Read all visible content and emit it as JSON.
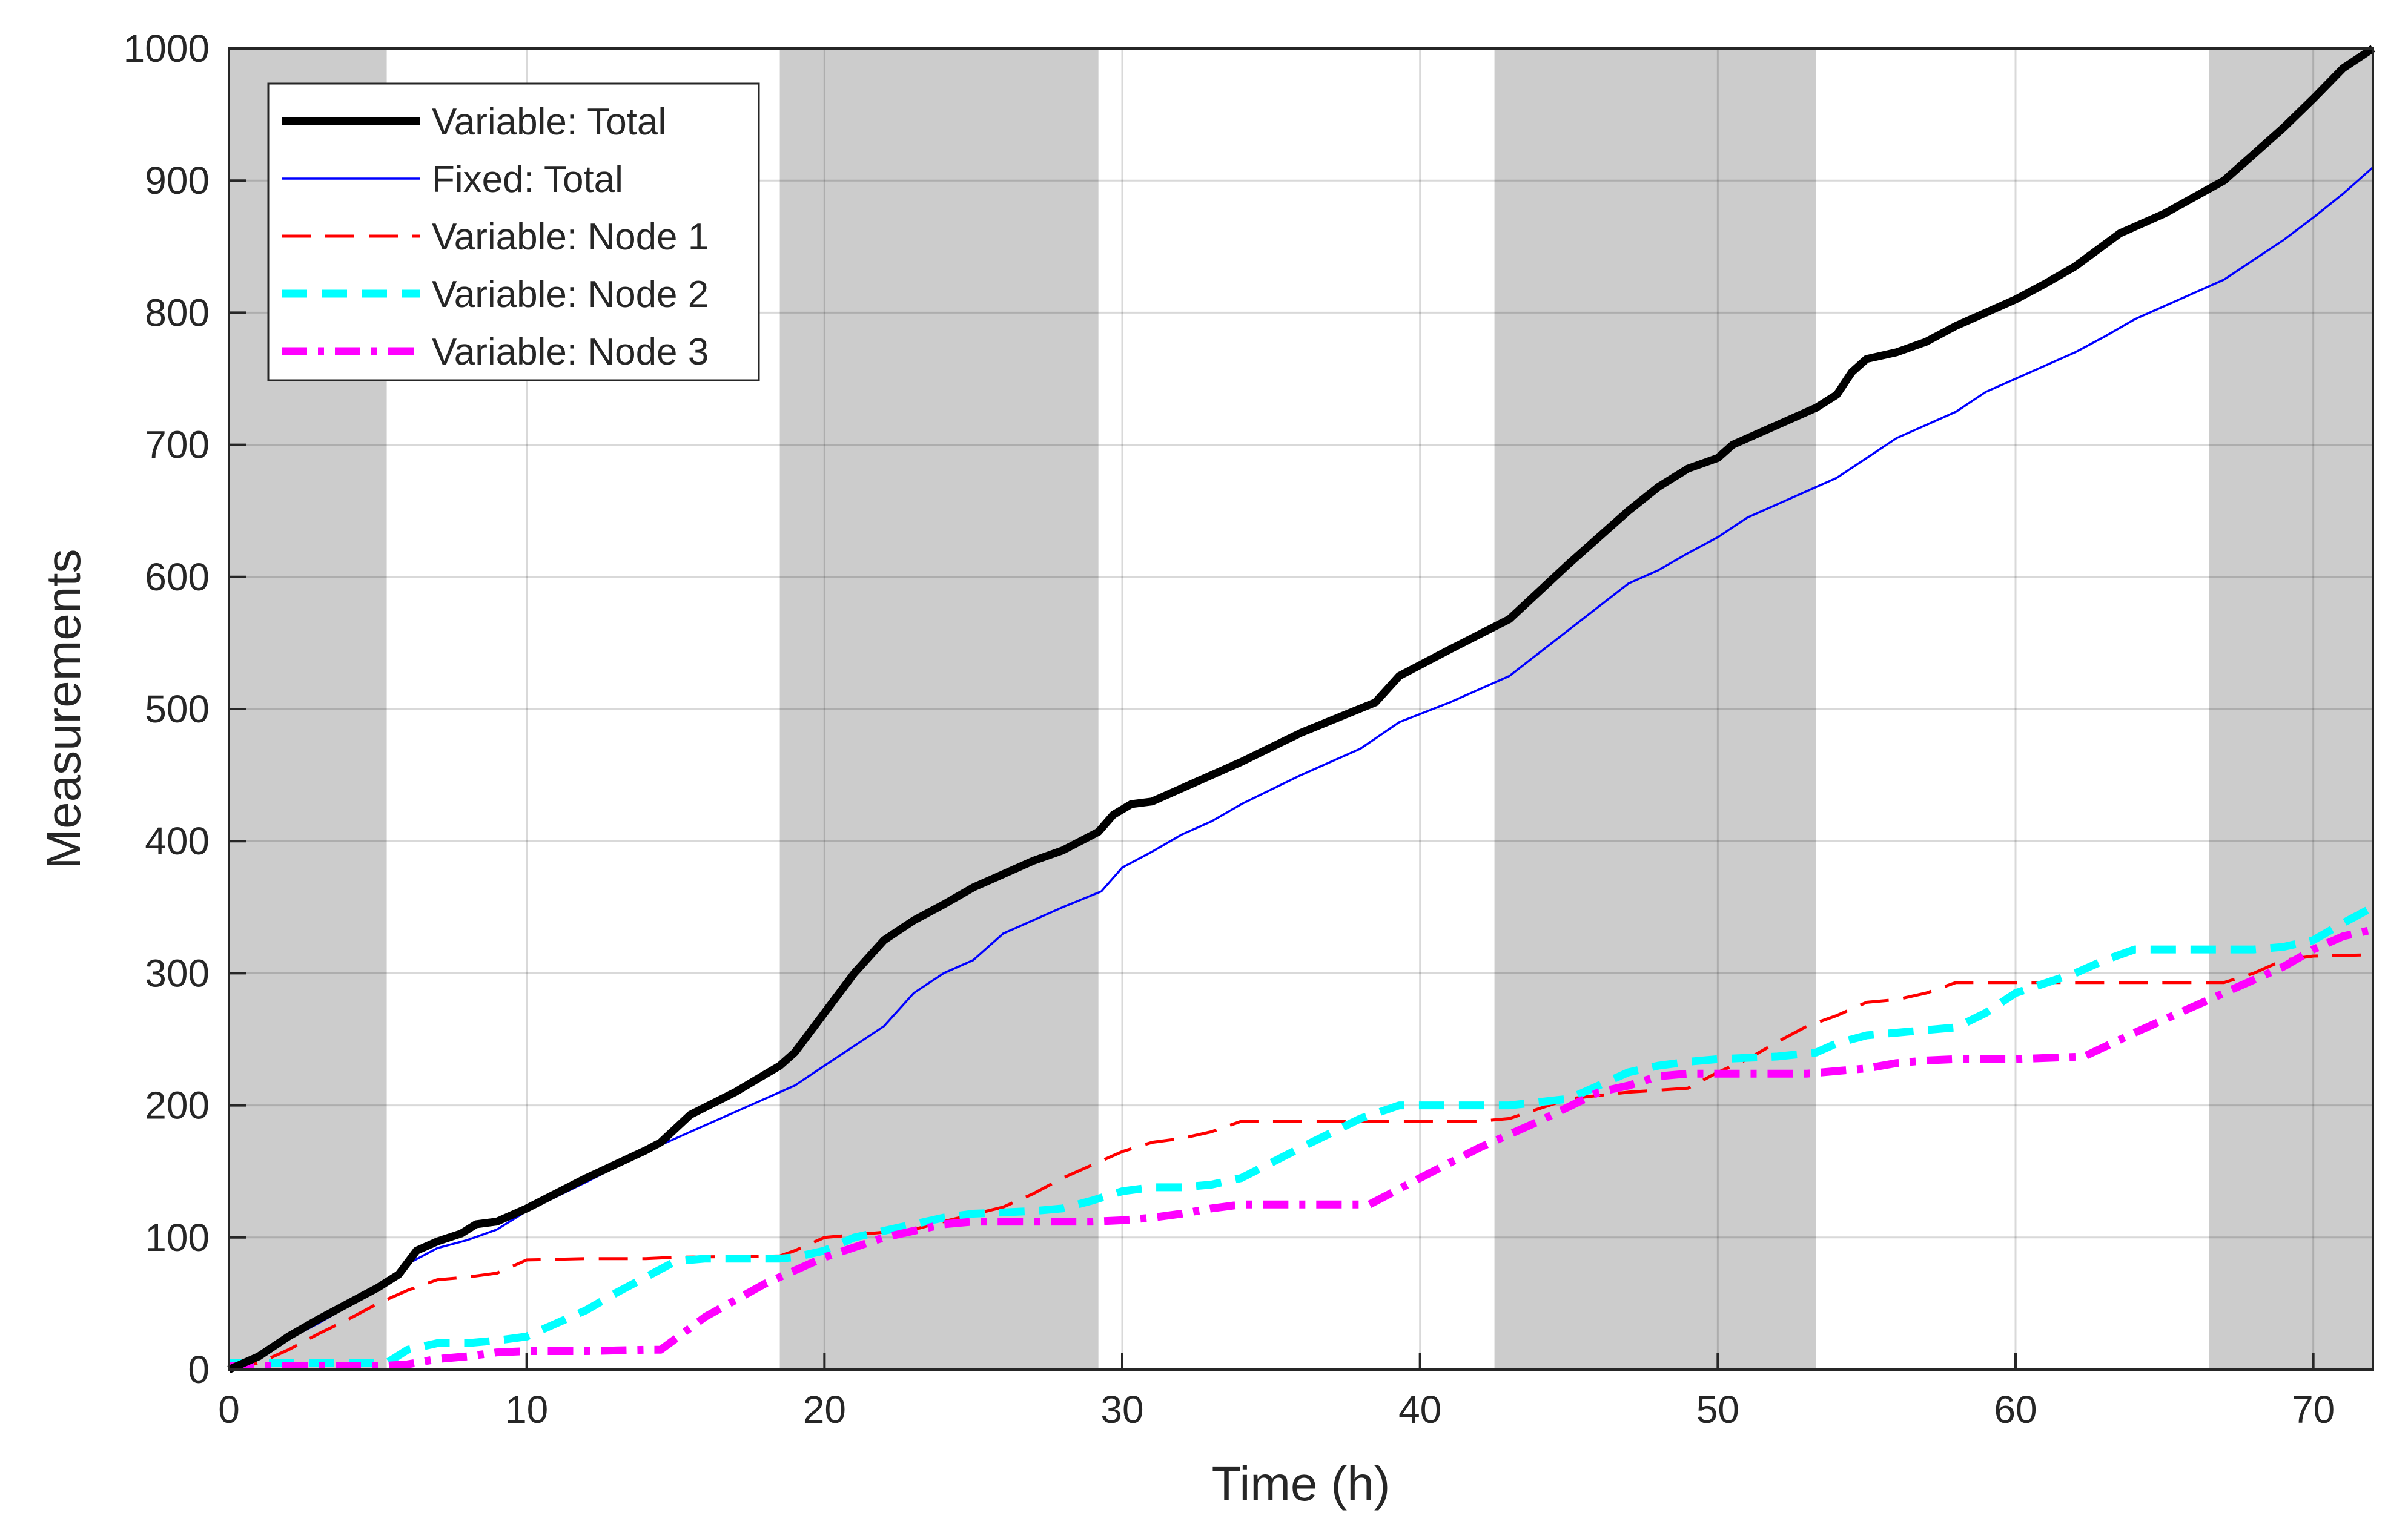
{
  "colors": {
    "background": "#ffffff",
    "shading": "#cccccc",
    "grid": "#dcdcdc",
    "axis": "#262626",
    "variable_total": "#000000",
    "fixed_total": "#0000ff",
    "node1": "#ff0000",
    "node2": "#00ffff",
    "node3": "#ff00ff"
  },
  "chart_data": {
    "type": "line",
    "title": "",
    "xlabel": "Time (h)",
    "ylabel": "Measurements",
    "xlim": [
      0,
      72
    ],
    "ylim": [
      0,
      1000
    ],
    "xticks": [
      0,
      10,
      20,
      30,
      40,
      50,
      60,
      70
    ],
    "yticks": [
      0,
      100,
      200,
      300,
      400,
      500,
      600,
      700,
      800,
      900,
      1000
    ],
    "grid": true,
    "legend_position": "top-left",
    "shaded_intervals": [
      [
        0,
        5.3
      ],
      [
        18.5,
        29.2
      ],
      [
        42.5,
        53.3
      ],
      [
        66.5,
        72
      ]
    ],
    "series": [
      {
        "name": "Variable: Total",
        "color": "#000000",
        "style": "solid-thick",
        "x": [
          0,
          1,
          2,
          3,
          4,
          5,
          5.7,
          6.3,
          7,
          7.8,
          8.3,
          9,
          10,
          12,
          14,
          14.5,
          15.5,
          17,
          18.5,
          19,
          20,
          21,
          22,
          23,
          24,
          25,
          26,
          27,
          28,
          29.2,
          29.7,
          30.3,
          31,
          32,
          32.5,
          33.5,
          34,
          36,
          38.5,
          39.3,
          41,
          43,
          45,
          47,
          48,
          49,
          50,
          50.5,
          51,
          52,
          53.3,
          54,
          54.5,
          55,
          56,
          57,
          58,
          59,
          60,
          61,
          62,
          63.5,
          65,
          67,
          68,
          69,
          70,
          71,
          72
        ],
        "y": [
          0,
          10,
          25,
          38,
          50,
          62,
          72,
          90,
          97,
          103,
          110,
          112,
          122,
          145,
          166,
          172,
          193,
          210,
          230,
          240,
          270,
          300,
          325,
          340,
          352,
          365,
          375,
          385,
          393,
          407,
          420,
          428,
          430,
          440,
          445,
          455,
          460,
          482,
          505,
          525,
          545,
          568,
          610,
          650,
          668,
          682,
          690,
          700,
          705,
          715,
          728,
          738,
          755,
          765,
          770,
          778,
          790,
          800,
          810,
          822,
          835,
          860,
          875,
          900,
          920,
          940,
          962,
          985,
          1000
        ]
      },
      {
        "name": "Fixed: Total",
        "color": "#0000ff",
        "style": "solid-thin",
        "x": [
          0,
          1,
          2,
          3,
          4,
          5,
          6,
          7,
          8,
          9,
          10,
          12,
          14,
          15,
          16,
          18,
          19,
          20,
          22,
          23,
          24,
          25,
          26,
          27,
          28,
          29.3,
          30,
          31,
          32,
          33,
          34,
          36,
          38,
          39.3,
          41,
          43,
          45,
          47,
          48,
          49,
          50,
          51,
          52,
          53,
          54,
          55,
          56,
          57,
          58,
          59,
          60,
          61,
          62,
          63,
          64,
          65,
          66,
          67,
          68,
          69,
          70,
          71,
          72
        ],
        "y": [
          0,
          10,
          23,
          35,
          48,
          60,
          80,
          92,
          98,
          106,
          120,
          142,
          165,
          175,
          185,
          205,
          215,
          230,
          260,
          285,
          300,
          310,
          330,
          340,
          350,
          362,
          380,
          392,
          405,
          415,
          428,
          450,
          470,
          490,
          505,
          525,
          560,
          595,
          605,
          618,
          630,
          645,
          655,
          665,
          675,
          690,
          705,
          715,
          725,
          740,
          750,
          760,
          770,
          782,
          795,
          805,
          815,
          825,
          840,
          855,
          872,
          890,
          910
        ]
      },
      {
        "name": "Variable: Node 1",
        "color": "#ff0000",
        "style": "dashed",
        "x": [
          0,
          1,
          2,
          3,
          4,
          5,
          6,
          7,
          8,
          9,
          10,
          12,
          14,
          15,
          18.5,
          19,
          20,
          22,
          23,
          24,
          26,
          27,
          28,
          29,
          30,
          31,
          32,
          33,
          34,
          36,
          38,
          40,
          42,
          43,
          45,
          47,
          49,
          50,
          51,
          52,
          53,
          54,
          55,
          56,
          57,
          58,
          60,
          62,
          64,
          66,
          67,
          68,
          69,
          70,
          72
        ],
        "y": [
          0,
          5,
          15,
          27,
          38,
          50,
          60,
          68,
          70,
          73,
          83,
          84,
          84,
          85,
          86,
          90,
          100,
          104,
          106,
          112,
          123,
          133,
          145,
          155,
          165,
          172,
          175,
          180,
          188,
          188,
          188,
          188,
          188,
          190,
          205,
          210,
          213,
          225,
          235,
          248,
          260,
          268,
          278,
          280,
          285,
          293,
          293,
          293,
          293,
          293,
          293,
          300,
          310,
          313,
          314
        ]
      },
      {
        "name": "Variable: Node 2",
        "color": "#00ffff",
        "style": "dashed-thick",
        "x": [
          0,
          2,
          4,
          5.3,
          6,
          7,
          8,
          9,
          10,
          11,
          12,
          13,
          14,
          15,
          16,
          18.5,
          19,
          20,
          21,
          22,
          23,
          24,
          25,
          27,
          28,
          29,
          30,
          31,
          32,
          33,
          34,
          36,
          38,
          39.3,
          41,
          43,
          45,
          47,
          48,
          49,
          50,
          52,
          53.3,
          54,
          55,
          56,
          57,
          58,
          59,
          60,
          62,
          63,
          64,
          65,
          66,
          67,
          68,
          69,
          70,
          71,
          72
        ],
        "y": [
          5,
          5,
          5,
          5,
          15,
          20,
          20,
          22,
          25,
          35,
          45,
          58,
          70,
          82,
          84,
          84,
          85,
          90,
          100,
          105,
          110,
          115,
          118,
          120,
          122,
          128,
          135,
          138,
          138,
          140,
          145,
          168,
          190,
          200,
          200,
          200,
          205,
          225,
          230,
          233,
          235,
          237,
          240,
          247,
          253,
          255,
          257,
          259,
          270,
          285,
          300,
          310,
          318,
          318,
          318,
          318,
          318,
          320,
          325,
          338,
          350
        ]
      },
      {
        "name": "Variable: Node 3",
        "color": "#ff00ff",
        "style": "dashdot-thick",
        "x": [
          0,
          2,
          4,
          5.3,
          6,
          7,
          8,
          9,
          10,
          12,
          14,
          14.5,
          16,
          18,
          20,
          22,
          23,
          24,
          25,
          27,
          28,
          29,
          30,
          31,
          32,
          33,
          34,
          36,
          38.3,
          40,
          42,
          44,
          46,
          47,
          48,
          49,
          50,
          52,
          53,
          54,
          55,
          56,
          57,
          58,
          60,
          62.3,
          64,
          66,
          68,
          69,
          70,
          71,
          72
        ],
        "y": [
          3,
          3,
          3,
          3,
          4,
          8,
          10,
          13,
          14,
          14,
          15,
          15,
          40,
          65,
          85,
          100,
          105,
          110,
          112,
          112,
          112,
          112,
          113,
          115,
          118,
          122,
          125,
          125,
          125,
          145,
          168,
          188,
          210,
          215,
          222,
          224,
          224,
          224,
          224,
          226,
          228,
          232,
          234,
          235,
          235,
          237,
          255,
          275,
          295,
          305,
          318,
          328,
          333
        ]
      }
    ]
  }
}
